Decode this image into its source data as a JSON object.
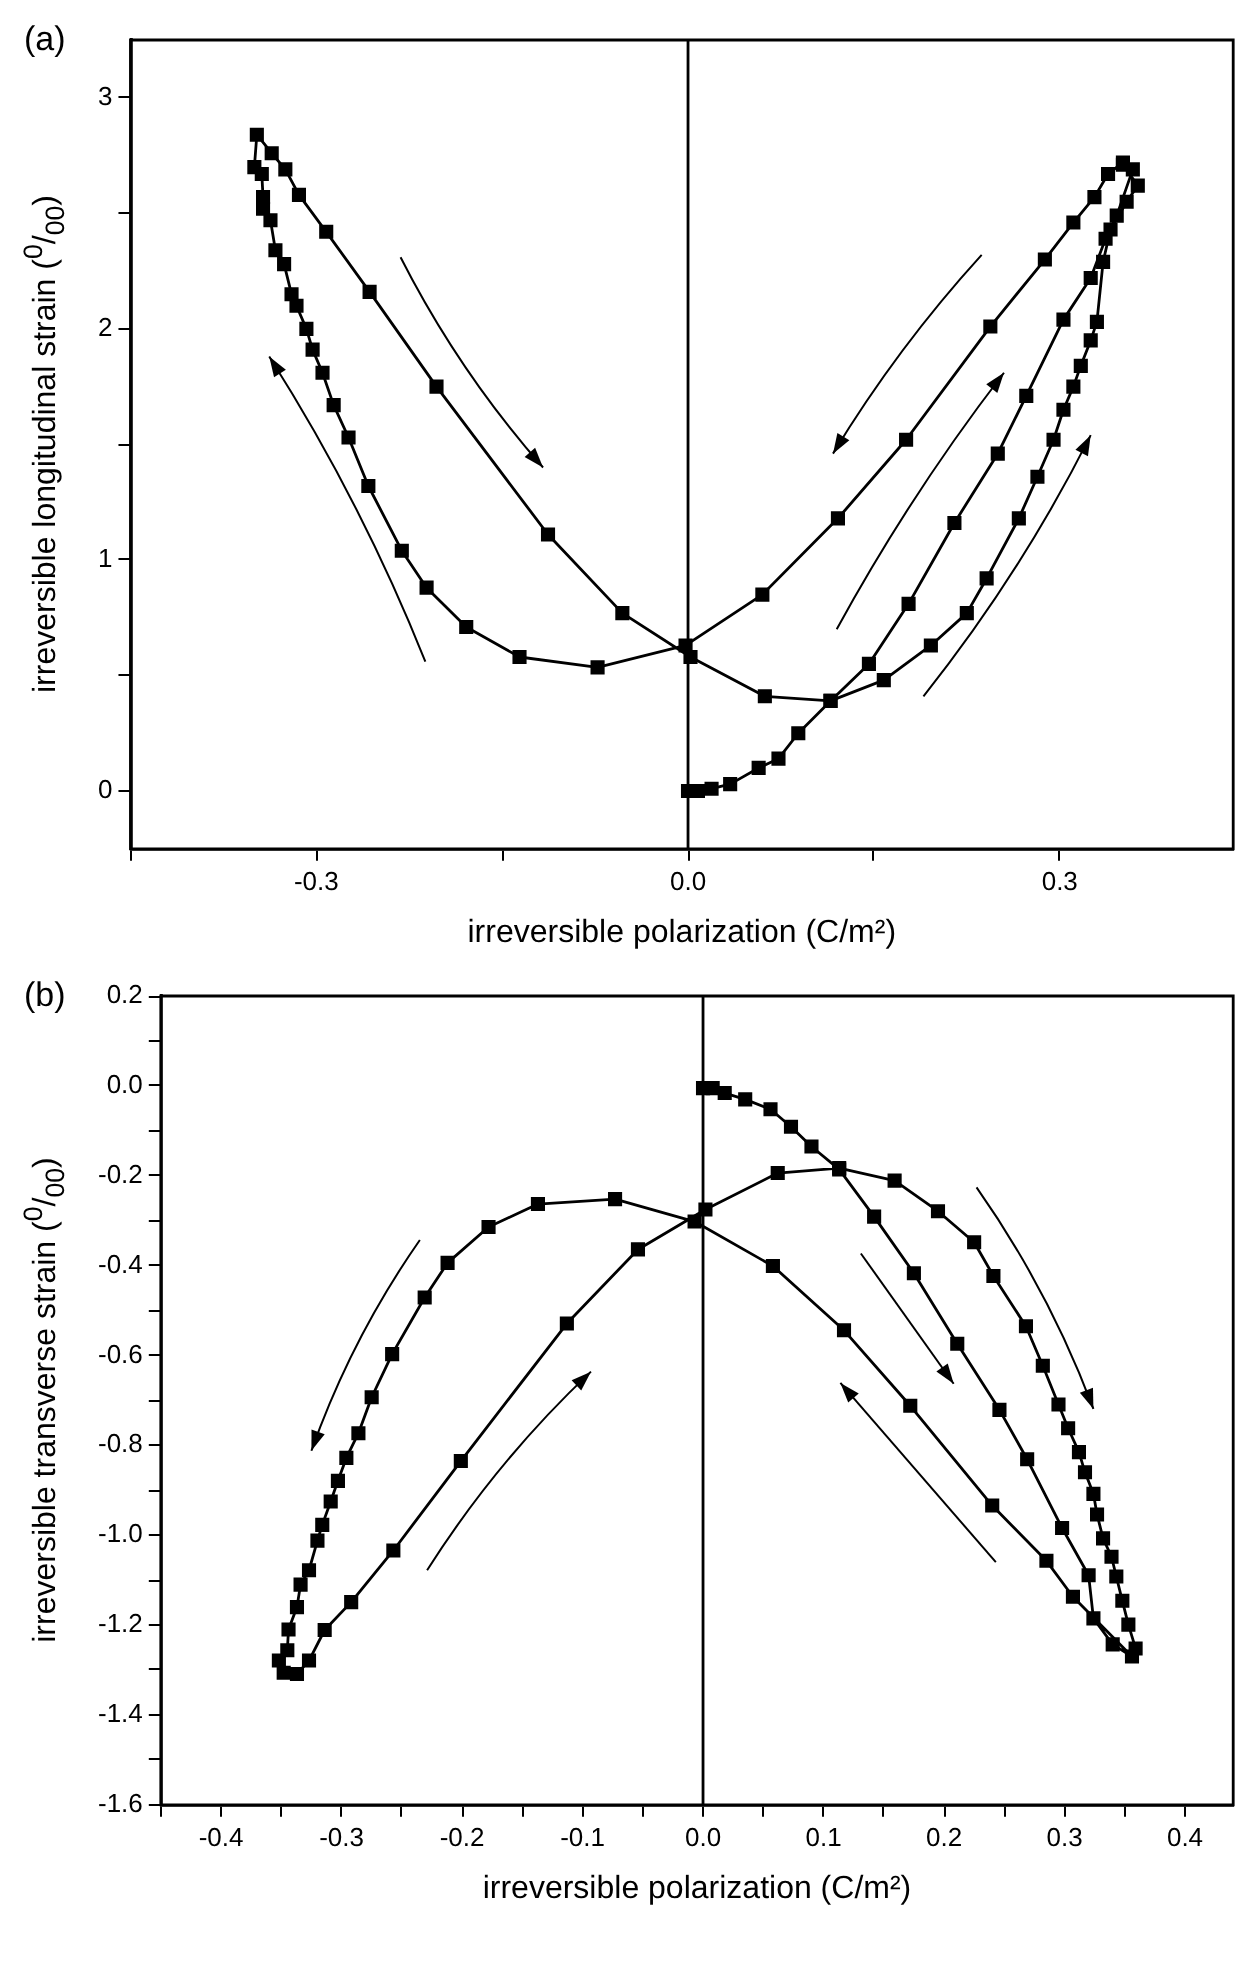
{
  "chart_data": [
    {
      "type": "line",
      "title": "(a)",
      "xlabel": "irreversible polarization (C/m²)",
      "ylabel": "irreversible longitudinal strain ($^{0}$/$_{00}$)",
      "marker": "square",
      "line_style": "solid",
      "grid": false,
      "xlim": [
        -0.45,
        0.44
      ],
      "ylim": [
        -0.25,
        3.25
      ],
      "xticks": [
        {
          "value": -0.45,
          "label": null
        },
        -0.3,
        {
          "value": -0.15,
          "label": null
        },
        {
          "value": 0,
          "label": "0.0"
        },
        {
          "value": 0.15,
          "label": null
        },
        0.3
      ],
      "yticks": [
        0,
        {
          "value": 0.5,
          "label": null
        },
        1,
        {
          "value": 1.5,
          "label": null
        },
        2,
        {
          "value": 2.5,
          "label": null
        },
        3
      ],
      "ref_lines": [
        {
          "axis": "x",
          "value": 0,
          "color": "#000000"
        }
      ],
      "series": [
        {
          "color": "#000000",
          "x": [
            0,
            0.008,
            0.019,
            0.034,
            0.057,
            0.073,
            0.089,
            0.115,
            0.146,
            0.178,
            0.215,
            0.25,
            0.273,
            0.303,
            0.325,
            0.337,
            0.346,
            0.359,
            0.351,
            0.339,
            0.328,
            0.311,
            0.288,
            0.244,
            0.176,
            0.121,
            0.06,
            -0.002,
            -0.073,
            -0.136,
            -0.179,
            -0.211,
            -0.231,
            -0.258,
            -0.274,
            -0.286,
            -0.295,
            -0.303,
            -0.308,
            -0.316,
            -0.32,
            -0.326,
            -0.333,
            -0.337,
            -0.343,
            -0.343,
            -0.344,
            -0.35,
            -0.348,
            -0.336,
            -0.325,
            -0.314,
            -0.292,
            -0.257,
            -0.203,
            -0.113,
            -0.053,
            0.002,
            0.062,
            0.115,
            0.158,
            0.196,
            0.225,
            0.241,
            0.267,
            0.282,
            0.295,
            0.303,
            0.311,
            0.317,
            0.325,
            0.33,
            0.335,
            0.341,
            0.354,
            0.363,
            0.351
          ],
          "values": [
            0,
            0,
            0.01,
            0.03,
            0.1,
            0.14,
            0.25,
            0.39,
            0.55,
            0.81,
            1.16,
            1.46,
            1.71,
            2.04,
            2.22,
            2.39,
            2.49,
            2.69,
            2.72,
            2.67,
            2.57,
            2.46,
            2.3,
            2.01,
            1.52,
            1.18,
            0.85,
            0.63,
            0.535,
            0.58,
            0.71,
            0.88,
            1.04,
            1.32,
            1.53,
            1.67,
            1.81,
            1.91,
            2,
            2.1,
            2.15,
            2.28,
            2.34,
            2.47,
            2.52,
            2.57,
            2.67,
            2.7,
            2.84,
            2.76,
            2.69,
            2.58,
            2.42,
            2.16,
            1.75,
            1.11,
            0.77,
            0.58,
            0.41,
            0.39,
            0.48,
            0.63,
            0.77,
            0.92,
            1.18,
            1.36,
            1.52,
            1.65,
            1.75,
            1.84,
            1.95,
            2.03,
            2.29,
            2.43,
            2.55,
            2.62,
            2.71
          ]
        }
      ]
    },
    {
      "type": "line",
      "title": "(b)",
      "xlabel": "irreversible polarization (C/m²)",
      "ylabel": "irreversible transverse strain ($^{0}$/$_{00}$)",
      "marker": "square",
      "line_style": "solid",
      "grid": false,
      "xlim": [
        -0.45,
        0.44
      ],
      "ylim": [
        -1.6,
        0.2
      ],
      "xticks": [
        {
          "value": -0.45,
          "label": null
        },
        -0.4,
        {
          "value": -0.35,
          "label": null
        },
        -0.3,
        {
          "value": -0.25,
          "label": null
        },
        -0.2,
        {
          "value": -0.15,
          "label": null
        },
        -0.1,
        {
          "value": -0.05,
          "label": null
        },
        {
          "value": 0,
          "label": "0.0"
        },
        {
          "value": 0.05,
          "label": null
        },
        0.1,
        {
          "value": 0.15,
          "label": null
        },
        0.2,
        {
          "value": 0.25,
          "label": null
        },
        0.3,
        {
          "value": 0.35,
          "label": null
        },
        0.4
      ],
      "yticks": [
        -1.6,
        {
          "value": -1.5,
          "label": null
        },
        -1.4,
        {
          "value": -1.3,
          "label": null
        },
        {
          "value": -1.2,
          "label": "-1.2"
        },
        {
          "value": -1.1,
          "label": null
        },
        {
          "value": -1,
          "label": "-1.0"
        },
        {
          "value": -0.9,
          "label": null
        },
        -0.8,
        {
          "value": -0.7,
          "label": null
        },
        -0.6,
        {
          "value": -0.5,
          "label": null
        },
        -0.4,
        {
          "value": -0.3,
          "label": null
        },
        -0.2,
        {
          "value": -0.1,
          "label": null
        },
        {
          "value": 0,
          "label": "0.0"
        },
        {
          "value": 0.1,
          "label": null
        },
        0.2
      ],
      "ref_lines": [
        {
          "axis": "x",
          "value": 0,
          "color": "#000000"
        }
      ],
      "series": [
        {
          "color": "#000000",
          "x": [
            0,
            0.008,
            0.018,
            0.035,
            0.056,
            0.073,
            0.09,
            0.113,
            0.142,
            0.175,
            0.211,
            0.246,
            0.269,
            0.298,
            0.32,
            0.324,
            0.34,
            0.356,
            0.307,
            0.285,
            0.24,
            0.172,
            0.117,
            0.058,
            -0.007,
            -0.073,
            -0.137,
            -0.178,
            -0.212,
            -0.231,
            -0.258,
            -0.275,
            -0.286,
            -0.296,
            -0.303,
            -0.309,
            -0.316,
            -0.32,
            -0.327,
            -0.334,
            -0.337,
            -0.344,
            -0.345,
            -0.352,
            -0.348,
            -0.337,
            -0.327,
            -0.314,
            -0.292,
            -0.257,
            -0.201,
            -0.113,
            -0.054,
            0.002,
            0.062,
            0.113,
            0.159,
            0.195,
            0.225,
            0.241,
            0.268,
            0.282,
            0.295,
            0.303,
            0.312,
            0.317,
            0.324,
            0.327,
            0.332,
            0.339,
            0.343,
            0.348,
            0.353,
            0.359
          ],
          "values": [
            -0.005,
            -0.005,
            -0.016,
            -0.03,
            -0.052,
            -0.091,
            -0.135,
            -0.186,
            -0.291,
            -0.417,
            -0.574,
            -0.721,
            -0.831,
            -0.984,
            -1.089,
            -1.185,
            -1.243,
            -1.27,
            -1.137,
            -1.057,
            -0.934,
            -0.712,
            -0.544,
            -0.401,
            -0.302,
            -0.252,
            -0.263,
            -0.314,
            -0.394,
            -0.471,
            -0.597,
            -0.693,
            -0.773,
            -0.828,
            -0.879,
            -0.925,
            -0.977,
            -1.012,
            -1.078,
            -1.11,
            -1.16,
            -1.21,
            -1.256,
            -1.279,
            -1.306,
            -1.309,
            -1.279,
            -1.211,
            -1.149,
            -1.034,
            -0.835,
            -0.529,
            -0.364,
            -0.275,
            -0.194,
            -0.183,
            -0.211,
            -0.279,
            -0.348,
            -0.423,
            -0.535,
            -0.623,
            -0.709,
            -0.762,
            -0.815,
            -0.86,
            -0.908,
            -0.954,
            -1.007,
            -1.048,
            -1.092,
            -1.146,
            -1.199,
            -1.252
          ]
        }
      ]
    }
  ]
}
